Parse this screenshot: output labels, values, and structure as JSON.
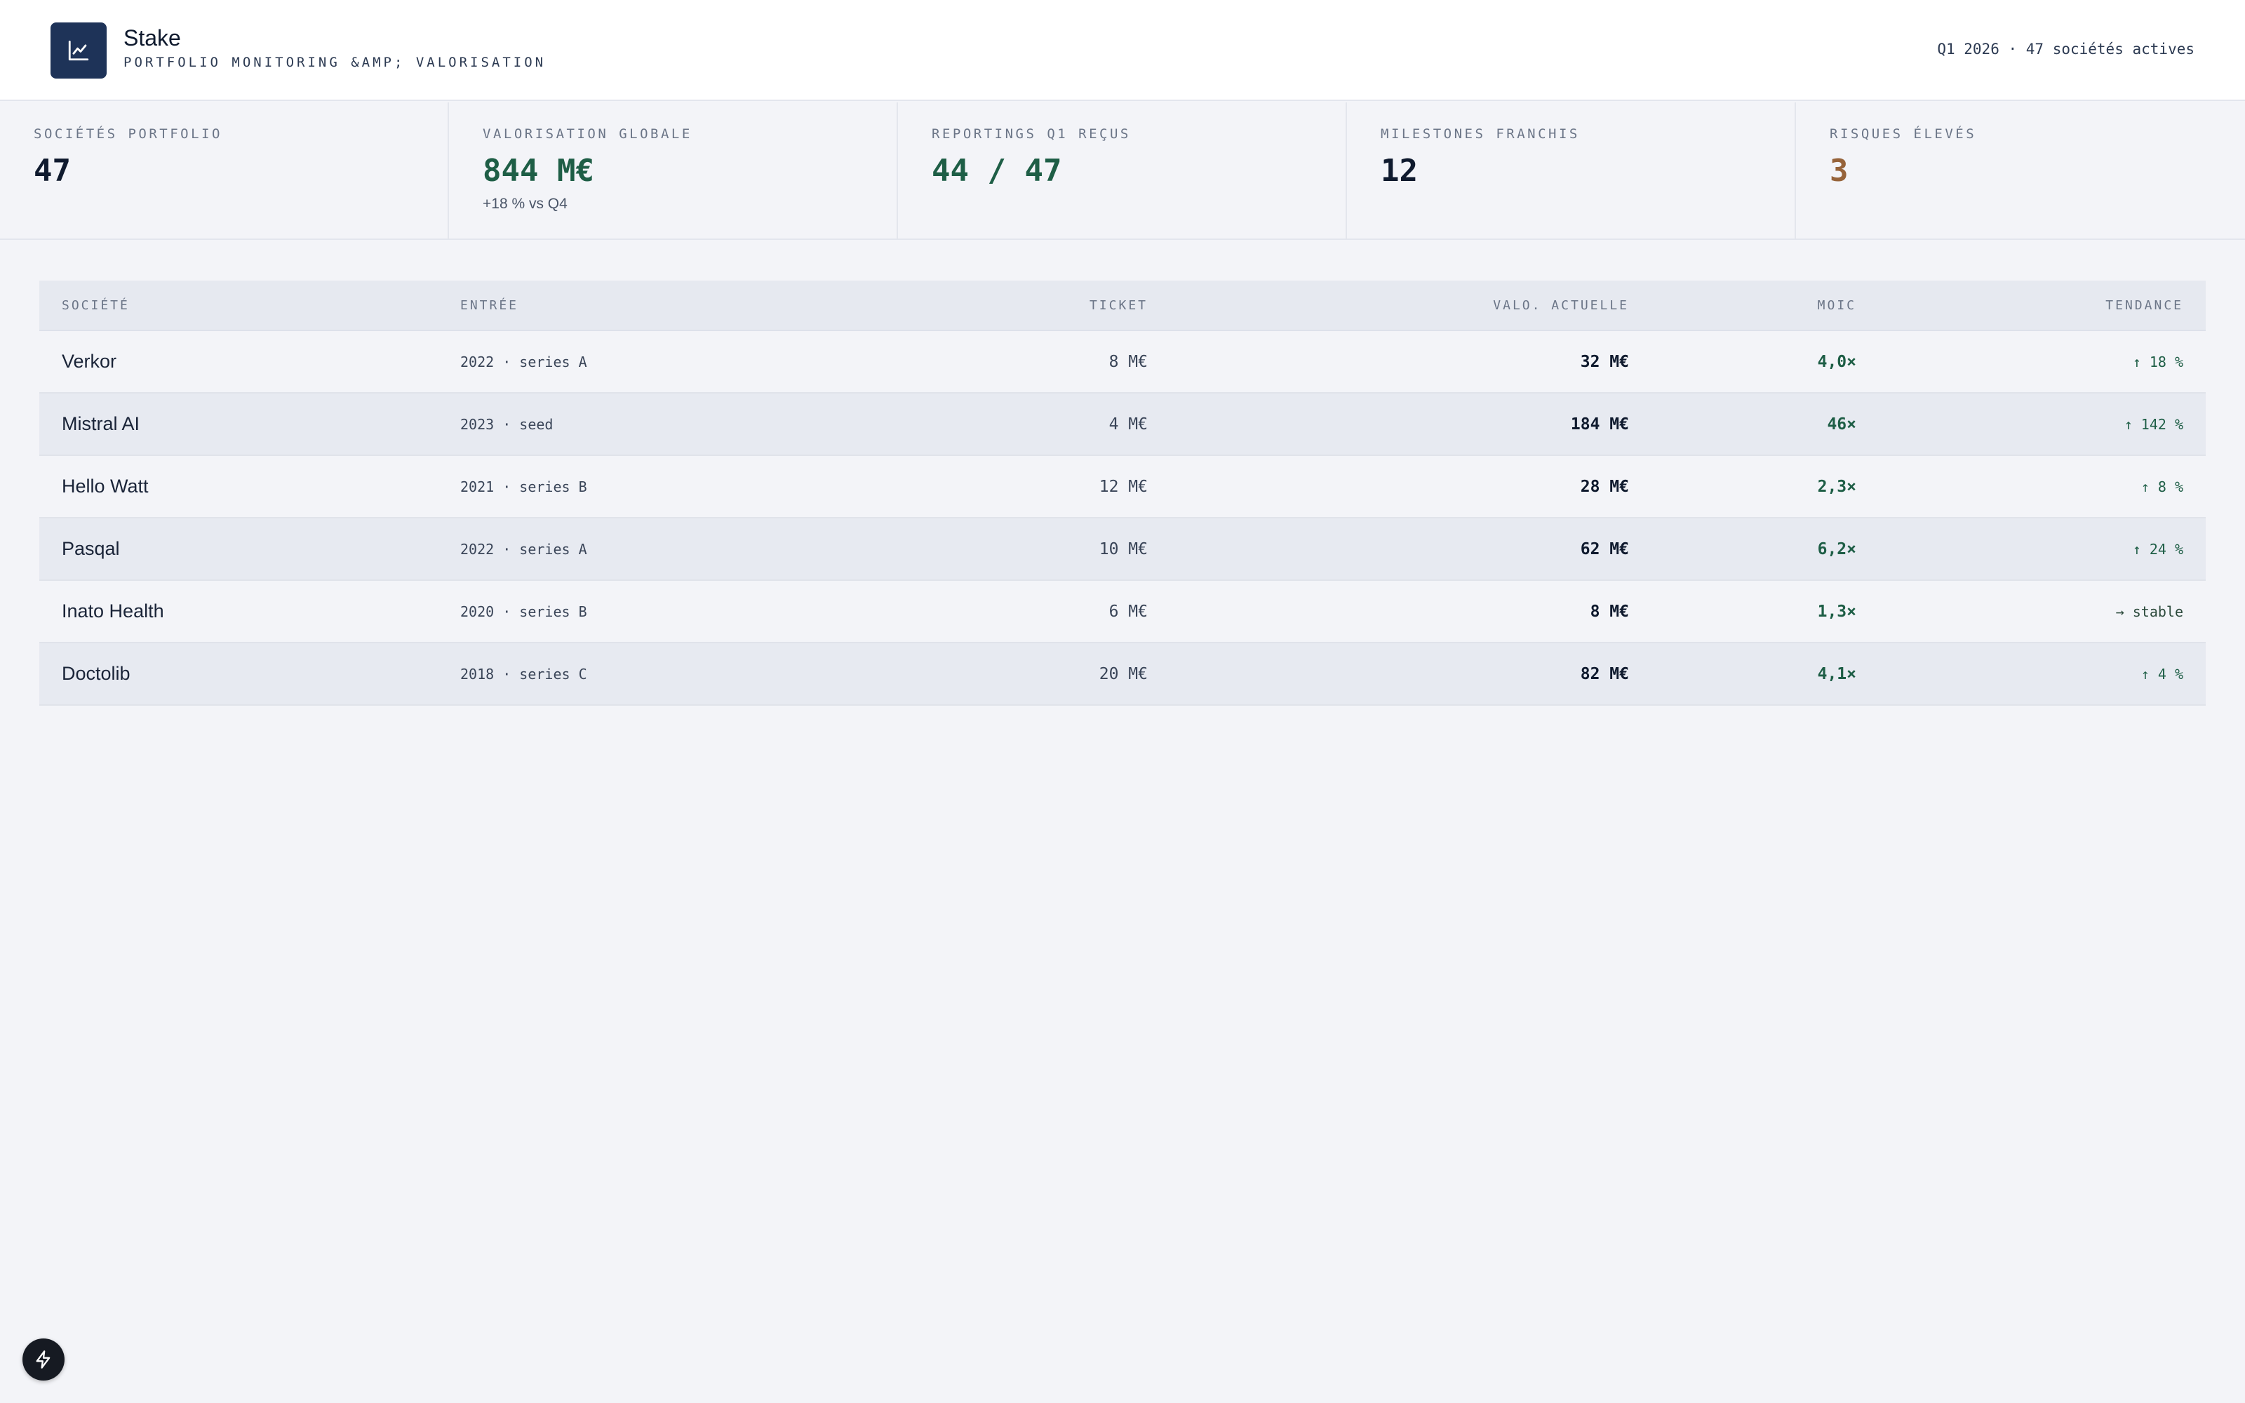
{
  "header": {
    "app_name": "Stake",
    "subtitle": "PORTFOLIO MONITORING &AMP; VALORISATION",
    "meta": "Q1 2026 · 47 sociétés actives",
    "logo_icon": "line-chart-icon"
  },
  "kpis": [
    {
      "label": "SOCIÉTÉS PORTFOLIO",
      "value": "47",
      "sub": ""
    },
    {
      "label": "VALORISATION GLOBALE",
      "value": "844 M€",
      "sub": "+18 % vs Q4"
    },
    {
      "label": "REPORTINGS Q1 REÇUS",
      "value": "44 / 47",
      "sub": ""
    },
    {
      "label": "MILESTONES FRANCHIS",
      "value": "12",
      "sub": ""
    },
    {
      "label": "RISQUES ÉLEVÉS",
      "value": "3",
      "sub": ""
    }
  ],
  "table": {
    "columns": {
      "company": "SOCIÉTÉ",
      "entry": "ENTRÉE",
      "ticket": "TICKET",
      "valuation": "VALO. ACTUELLE",
      "moic": "MOIC",
      "trend": "TENDANCE"
    },
    "rows": [
      {
        "company": "Verkor",
        "entry": "2022 · series A",
        "ticket": "8 M€",
        "valuation": "32 M€",
        "moic": "4,0×",
        "trend": "↑ 18 %"
      },
      {
        "company": "Mistral AI",
        "entry": "2023 · seed",
        "ticket": "4 M€",
        "valuation": "184 M€",
        "moic": "46×",
        "trend": "↑ 142 %"
      },
      {
        "company": "Hello Watt",
        "entry": "2021 · series B",
        "ticket": "12 M€",
        "valuation": "28 M€",
        "moic": "2,3×",
        "trend": "↑ 8 %"
      },
      {
        "company": "Pasqal",
        "entry": "2022 · series A",
        "ticket": "10 M€",
        "valuation": "62 M€",
        "moic": "6,2×",
        "trend": "↑ 24 %"
      },
      {
        "company": "Inato Health",
        "entry": "2020 · series B",
        "ticket": "6 M€",
        "valuation": "8 M€",
        "moic": "1,3×",
        "trend": "→ stable"
      },
      {
        "company": "Doctolib",
        "entry": "2018 · series C",
        "ticket": "20 M€",
        "valuation": "82 M€",
        "moic": "4,1×",
        "trend": "↑ 4 %"
      }
    ]
  },
  "colors": {
    "accent_green": "#1e5e46",
    "risk_orange": "#96633a",
    "logo_bg": "#1e3358"
  },
  "fab_icon": "lightning-bolt-icon"
}
